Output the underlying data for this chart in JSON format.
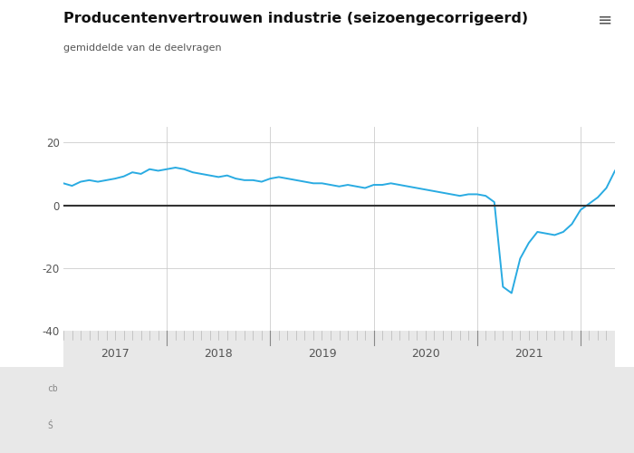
{
  "title": "Producentenvertrouwen industrie (seizoengecorrigeerd)",
  "subtitle": "gemiddelde van de deelvragen",
  "line_color": "#29ABE2",
  "zero_line_color": "#333333",
  "background_color": "#ffffff",
  "plot_bg_color": "#ffffff",
  "footer_bg_color": "#e8e8e8",
  "grid_color": "#cccccc",
  "ylim": [
    -40,
    25
  ],
  "yticks": [
    -40,
    -20,
    0,
    20
  ],
  "xlabel_color": "#555555",
  "title_color": "#111111",
  "subtitle_color": "#555555",
  "data": {
    "values": [
      7.0,
      6.2,
      7.5,
      8.0,
      7.5,
      8.0,
      8.5,
      9.2,
      10.5,
      10.0,
      11.5,
      11.0,
      11.5,
      12.0,
      11.5,
      10.5,
      10.0,
      9.5,
      9.0,
      9.5,
      8.5,
      8.0,
      8.0,
      7.5,
      8.5,
      9.0,
      8.5,
      8.0,
      7.5,
      7.0,
      7.0,
      6.5,
      6.0,
      6.5,
      6.0,
      5.5,
      6.5,
      6.5,
      7.0,
      6.5,
      6.0,
      5.5,
      5.0,
      4.5,
      4.0,
      3.5,
      3.0,
      3.5,
      3.5,
      3.0,
      1.0,
      -26.0,
      -28.0,
      -17.0,
      -12.0,
      -8.5,
      -9.0,
      -9.5,
      -8.5,
      -6.0,
      -1.5,
      0.5,
      2.5,
      5.5,
      11.0
    ]
  },
  "xaxis_years": [
    "2017",
    "2018",
    "2019",
    "2020",
    "2021"
  ],
  "xaxis_year_positions": [
    12,
    24,
    36,
    48,
    60
  ],
  "n_months": 65,
  "hamburger": "≡"
}
